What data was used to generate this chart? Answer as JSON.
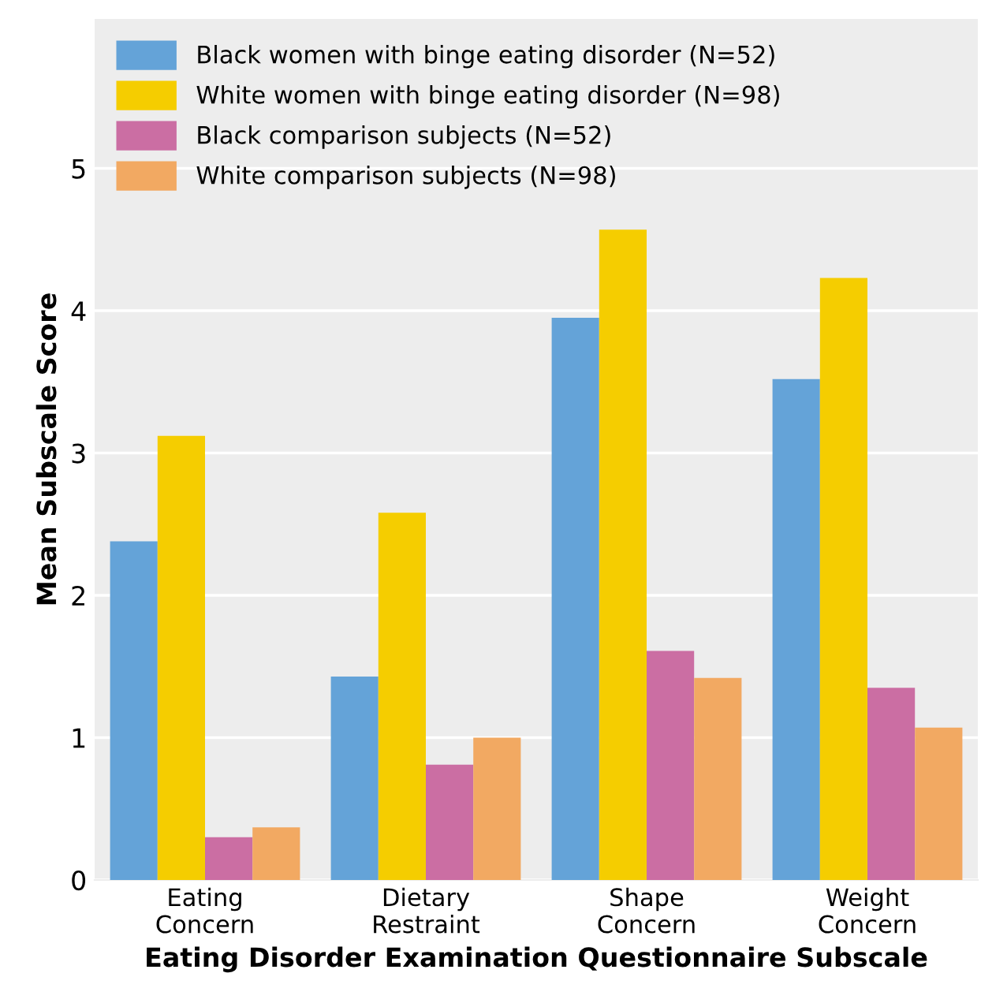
{
  "chart_data": {
    "type": "bar",
    "categories": [
      "Eating\nConcern",
      "Dietary\nRestraint",
      "Shape\nConcern",
      "Weight\nConcern"
    ],
    "series": [
      {
        "name": "Black women with binge eating disorder (N=52)",
        "color": "#64a3d8",
        "values": [
          2.38,
          1.43,
          3.95,
          3.52
        ]
      },
      {
        "name": "White women with binge eating disorder (N=98)",
        "color": "#f5cd00",
        "values": [
          3.12,
          2.58,
          4.57,
          4.23
        ]
      },
      {
        "name": "Black comparison subjects (N=52)",
        "color": "#cb6ea3",
        "values": [
          0.3,
          0.81,
          1.61,
          1.35
        ]
      },
      {
        "name": "White comparison subjects (N=98)",
        "color": "#f2a962",
        "values": [
          0.37,
          1.0,
          1.42,
          1.07
        ]
      }
    ],
    "xlabel": "Eating Disorder Examination Questionnaire Subscale",
    "ylabel": "Mean Subscale Score",
    "ylim": [
      0,
      6.05
    ],
    "yticks": [
      0,
      1,
      2,
      3,
      4,
      5
    ],
    "grid": "y",
    "legend": "top left"
  }
}
